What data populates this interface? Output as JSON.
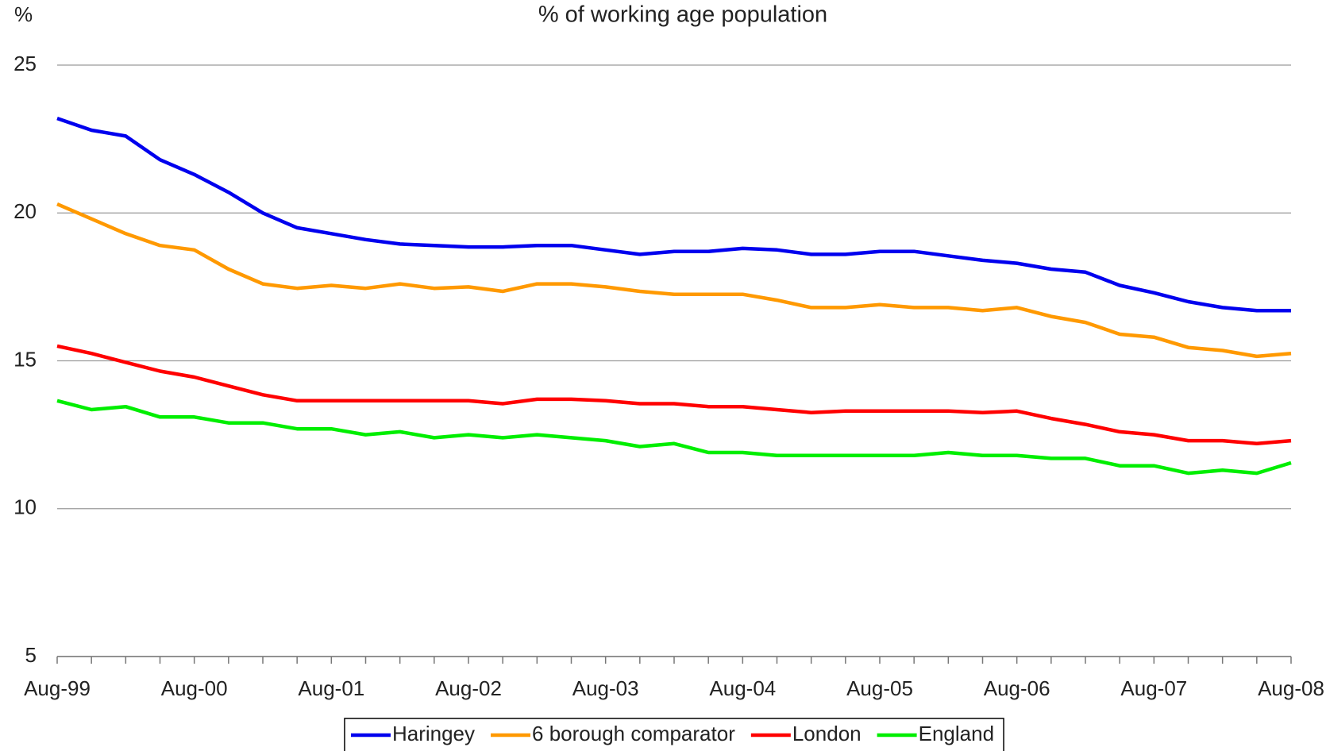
{
  "chart_data": {
    "type": "line",
    "title": "% of working age population",
    "ylabel": "%",
    "categories": [
      "Aug-99",
      null,
      null,
      null,
      "Aug-00",
      null,
      null,
      null,
      "Aug-01",
      null,
      null,
      null,
      "Aug-02",
      null,
      null,
      null,
      "Aug-03",
      null,
      null,
      null,
      "Aug-04",
      null,
      null,
      null,
      "Aug-05",
      null,
      null,
      null,
      "Aug-06",
      null,
      null,
      null,
      "Aug-07",
      null,
      null,
      null,
      "Aug-08"
    ],
    "series": [
      {
        "name": "Haringey",
        "color": "#0000ee",
        "values": [
          23.2,
          22.8,
          22.6,
          21.8,
          21.3,
          20.7,
          20.0,
          19.5,
          19.3,
          19.1,
          18.95,
          18.9,
          18.85,
          18.85,
          18.9,
          18.9,
          18.75,
          18.6,
          18.7,
          18.7,
          18.8,
          18.75,
          18.6,
          18.6,
          18.7,
          18.7,
          18.55,
          18.4,
          18.3,
          18.1,
          18.0,
          17.55,
          17.3,
          17.0,
          16.8,
          16.7,
          16.7
        ]
      },
      {
        "name": "6 borough comparator",
        "color": "#ff9900",
        "values": [
          20.3,
          19.8,
          19.3,
          18.9,
          18.75,
          18.1,
          17.6,
          17.45,
          17.55,
          17.45,
          17.6,
          17.45,
          17.5,
          17.35,
          17.6,
          17.6,
          17.5,
          17.35,
          17.25,
          17.25,
          17.25,
          17.05,
          16.8,
          16.8,
          16.9,
          16.8,
          16.8,
          16.7,
          16.8,
          16.5,
          16.3,
          15.9,
          15.8,
          15.45,
          15.35,
          15.15,
          15.25
        ]
      },
      {
        "name": "London",
        "color": "#ff0000",
        "values": [
          15.5,
          15.25,
          14.95,
          14.65,
          14.45,
          14.15,
          13.85,
          13.65,
          13.65,
          13.65,
          13.65,
          13.65,
          13.65,
          13.55,
          13.7,
          13.7,
          13.65,
          13.55,
          13.55,
          13.45,
          13.45,
          13.35,
          13.25,
          13.3,
          13.3,
          13.3,
          13.3,
          13.25,
          13.3,
          13.05,
          12.85,
          12.6,
          12.5,
          12.3,
          12.3,
          12.2,
          12.3
        ]
      },
      {
        "name": "England",
        "color": "#00ee00",
        "values": [
          13.65,
          13.35,
          13.45,
          13.1,
          13.1,
          12.9,
          12.9,
          12.7,
          12.7,
          12.5,
          12.6,
          12.4,
          12.5,
          12.4,
          12.5,
          12.4,
          12.3,
          12.1,
          12.2,
          11.9,
          11.9,
          11.8,
          11.8,
          11.8,
          11.8,
          11.8,
          11.9,
          11.8,
          11.8,
          11.7,
          11.7,
          11.45,
          11.45,
          11.2,
          11.3,
          11.2,
          11.55
        ]
      }
    ],
    "ylim": [
      5,
      25
    ],
    "yticks": [
      5,
      10,
      15,
      20,
      25
    ],
    "grid": true,
    "legend": "bottom"
  }
}
